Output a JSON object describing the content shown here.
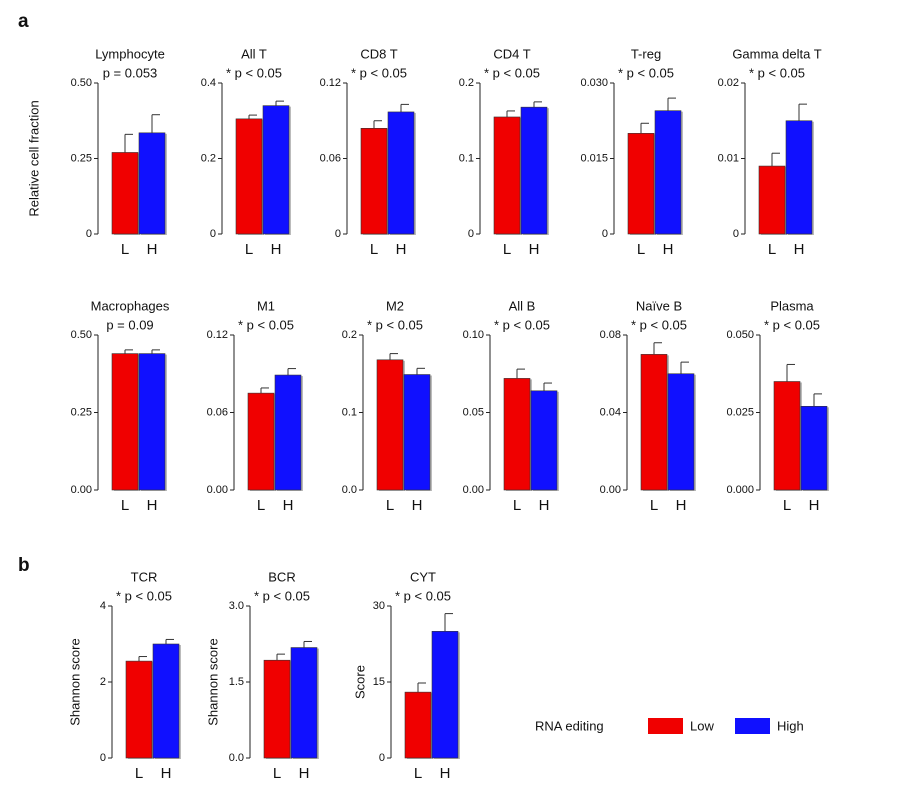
{
  "panels": [
    "a",
    "b"
  ],
  "legend": {
    "title": "RNA editing",
    "items": [
      {
        "label": "Low",
        "color": "#f00000"
      },
      {
        "label": "High",
        "color": "#1010ff"
      }
    ]
  },
  "chart_data": [
    {
      "type": "bar",
      "title": "Lymphocyte",
      "subtitle": "p = 0.053",
      "ylabel": "Relative cell fraction",
      "categories": [
        "L",
        "H"
      ],
      "values": [
        0.27,
        0.335
      ],
      "errors": [
        0.06,
        0.06
      ],
      "ylim": [
        0,
        0.5
      ],
      "yticks": [
        0,
        0.25,
        {
          "value": 0.5,
          "label": "0.50"
        }
      ]
    },
    {
      "type": "bar",
      "title": "All T",
      "subtitle": "* p < 0.05",
      "categories": [
        "L",
        "H"
      ],
      "values": [
        0.305,
        0.34
      ],
      "errors": [
        0.01,
        0.012
      ],
      "ylim": [
        0,
        0.4
      ],
      "yticks": [
        0,
        0.2,
        0.4
      ]
    },
    {
      "type": "bar",
      "title": "CD8 T",
      "subtitle": "* p < 0.05",
      "categories": [
        "L",
        "H"
      ],
      "values": [
        0.084,
        0.097
      ],
      "errors": [
        0.006,
        0.006
      ],
      "ylim": [
        0,
        0.12
      ],
      "yticks": [
        0,
        0.06,
        0.12
      ]
    },
    {
      "type": "bar",
      "title": "CD4 T",
      "subtitle": "* p < 0.05",
      "categories": [
        "L",
        "H"
      ],
      "values": [
        0.155,
        0.168
      ],
      "errors": [
        0.008,
        0.007
      ],
      "ylim": [
        0,
        0.2
      ],
      "yticks": [
        0,
        0.1,
        0.2
      ]
    },
    {
      "type": "bar",
      "title": "T-reg",
      "subtitle": "* p < 0.05",
      "categories": [
        "L",
        "H"
      ],
      "values": [
        0.02,
        0.0245
      ],
      "errors": [
        0.002,
        0.0025
      ],
      "ylim": [
        0,
        0.03
      ],
      "yticks": [
        0,
        {
          "value": 0.015,
          "label": "0.015"
        },
        {
          "value": 0.03,
          "label": "0.030"
        }
      ]
    },
    {
      "type": "bar",
      "title": "Gamma delta T",
      "subtitle": "* p < 0.05",
      "categories": [
        "L",
        "H"
      ],
      "values": [
        0.009,
        0.015
      ],
      "errors": [
        0.0017,
        0.0022
      ],
      "ylim": [
        0,
        0.02
      ],
      "yticks": [
        0,
        0.01,
        0.02
      ]
    },
    {
      "type": "bar",
      "title": "Macrophages",
      "subtitle": "p = 0.09",
      "categories": [
        "L",
        "H"
      ],
      "values": [
        0.44,
        0.44
      ],
      "errors": [
        0.012,
        0.012
      ],
      "ylim": [
        0,
        0.5
      ],
      "yticks": [
        {
          "value": 0,
          "label": "0.00"
        },
        0.25,
        {
          "value": 0.5,
          "label": "0.50"
        }
      ]
    },
    {
      "type": "bar",
      "title": "M1",
      "subtitle": "* p < 0.05",
      "categories": [
        "L",
        "H"
      ],
      "values": [
        0.075,
        0.089
      ],
      "errors": [
        0.004,
        0.005
      ],
      "ylim": [
        0,
        0.12
      ],
      "yticks": [
        {
          "value": 0,
          "label": "0.00"
        },
        0.06,
        0.12
      ]
    },
    {
      "type": "bar",
      "title": "M2",
      "subtitle": "* p < 0.05",
      "categories": [
        "L",
        "H"
      ],
      "values": [
        0.168,
        0.149
      ],
      "errors": [
        0.008,
        0.008
      ],
      "ylim": [
        0,
        0.2
      ],
      "yticks": [
        {
          "value": 0,
          "label": "0.0"
        },
        0.1,
        0.2
      ]
    },
    {
      "type": "bar",
      "title": "All B",
      "subtitle": "* p < 0.05",
      "categories": [
        "L",
        "H"
      ],
      "values": [
        0.072,
        0.064
      ],
      "errors": [
        0.006,
        0.005
      ],
      "ylim": [
        0,
        0.1
      ],
      "yticks": [
        {
          "value": 0,
          "label": "0.00"
        },
        0.05,
        {
          "value": 0.1,
          "label": "0.10"
        }
      ]
    },
    {
      "type": "bar",
      "title": "Naïve B",
      "subtitle": "* p < 0.05",
      "categories": [
        "L",
        "H"
      ],
      "values": [
        0.07,
        0.06
      ],
      "errors": [
        0.006,
        0.006
      ],
      "ylim": [
        0,
        0.08
      ],
      "yticks": [
        {
          "value": 0,
          "label": "0.00"
        },
        0.04,
        0.08
      ]
    },
    {
      "type": "bar",
      "title": "Plasma",
      "subtitle": "* p < 0.05",
      "categories": [
        "L",
        "H"
      ],
      "values": [
        0.035,
        0.027
      ],
      "errors": [
        0.0055,
        0.004
      ],
      "ylim": [
        0,
        0.05
      ],
      "yticks": [
        {
          "value": 0,
          "label": "0.000"
        },
        {
          "value": 0.025,
          "label": "0.025"
        },
        {
          "value": 0.05,
          "label": "0.050"
        }
      ]
    },
    {
      "type": "bar",
      "title": "TCR",
      "subtitle": "* p < 0.05",
      "ylabel": "Shannon score",
      "categories": [
        "L",
        "H"
      ],
      "values": [
        2.55,
        3.0
      ],
      "errors": [
        0.12,
        0.12
      ],
      "ylim": [
        0,
        4
      ],
      "yticks": [
        0,
        2,
        4
      ]
    },
    {
      "type": "bar",
      "title": "BCR",
      "subtitle": "* p < 0.05",
      "ylabel": "Shannon score",
      "categories": [
        "L",
        "H"
      ],
      "values": [
        1.93,
        2.18
      ],
      "errors": [
        0.12,
        0.12
      ],
      "ylim": [
        0,
        3
      ],
      "yticks": [
        {
          "value": 0,
          "label": "0.0"
        },
        1.5,
        {
          "value": 3,
          "label": "3.0"
        }
      ]
    },
    {
      "type": "bar",
      "title": "CYT",
      "subtitle": "* p < 0.05",
      "ylabel": "Score",
      "categories": [
        "L",
        "H"
      ],
      "values": [
        13,
        25
      ],
      "errors": [
        1.8,
        3.5
      ],
      "ylim": [
        0,
        30
      ],
      "yticks": [
        0,
        15,
        30
      ]
    }
  ]
}
